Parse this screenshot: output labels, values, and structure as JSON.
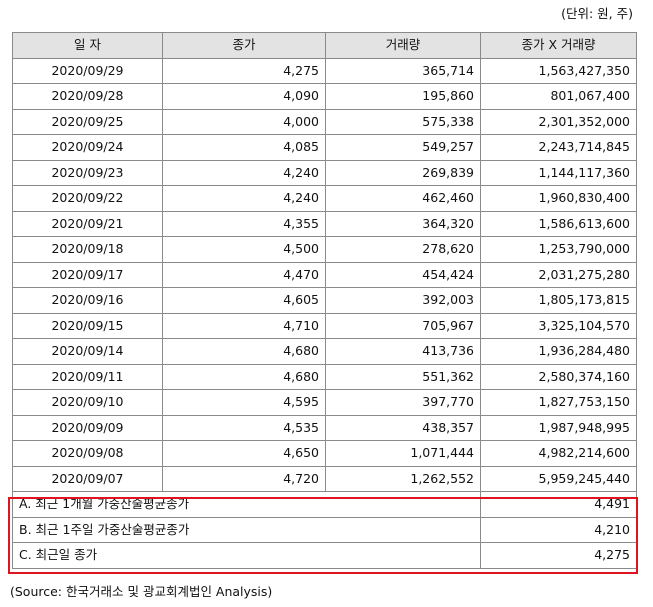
{
  "unit_note": "(단위: 원, 주)",
  "headers": {
    "date": "일    자",
    "close": "종가",
    "volume": "거래량",
    "close_x_volume": "종가 X 거래량"
  },
  "rows": [
    {
      "date": "2020/09/29",
      "close": "4,275",
      "volume": "365,714",
      "product": "1,563,427,350"
    },
    {
      "date": "2020/09/28",
      "close": "4,090",
      "volume": "195,860",
      "product": "801,067,400"
    },
    {
      "date": "2020/09/25",
      "close": "4,000",
      "volume": "575,338",
      "product": "2,301,352,000"
    },
    {
      "date": "2020/09/24",
      "close": "4,085",
      "volume": "549,257",
      "product": "2,243,714,845"
    },
    {
      "date": "2020/09/23",
      "close": "4,240",
      "volume": "269,839",
      "product": "1,144,117,360"
    },
    {
      "date": "2020/09/22",
      "close": "4,240",
      "volume": "462,460",
      "product": "1,960,830,400"
    },
    {
      "date": "2020/09/21",
      "close": "4,355",
      "volume": "364,320",
      "product": "1,586,613,600"
    },
    {
      "date": "2020/09/18",
      "close": "4,500",
      "volume": "278,620",
      "product": "1,253,790,000"
    },
    {
      "date": "2020/09/17",
      "close": "4,470",
      "volume": "454,424",
      "product": "2,031,275,280"
    },
    {
      "date": "2020/09/16",
      "close": "4,605",
      "volume": "392,003",
      "product": "1,805,173,815"
    },
    {
      "date": "2020/09/15",
      "close": "4,710",
      "volume": "705,967",
      "product": "3,325,104,570"
    },
    {
      "date": "2020/09/14",
      "close": "4,680",
      "volume": "413,736",
      "product": "1,936,284,480"
    },
    {
      "date": "2020/09/11",
      "close": "4,680",
      "volume": "551,362",
      "product": "2,580,374,160"
    },
    {
      "date": "2020/09/10",
      "close": "4,595",
      "volume": "397,770",
      "product": "1,827,753,150"
    },
    {
      "date": "2020/09/09",
      "close": "4,535",
      "volume": "438,357",
      "product": "1,987,948,995"
    },
    {
      "date": "2020/09/08",
      "close": "4,650",
      "volume": "1,071,444",
      "product": "4,982,214,600"
    },
    {
      "date": "2020/09/07",
      "close": "4,720",
      "volume": "1,262,552",
      "product": "5,959,245,440"
    }
  ],
  "summary": [
    {
      "label": "A. 최근 1개월 가중산술평균종가",
      "value": "4,491"
    },
    {
      "label": "B. 최근 1주일 가중산술평균종가",
      "value": "4,210"
    },
    {
      "label": "C. 최근일 종가",
      "value": "4,275"
    }
  ],
  "highlight_color": "#e0141e",
  "source": "(Source: 한국거래소 및 광교회계법인 Analysis)"
}
